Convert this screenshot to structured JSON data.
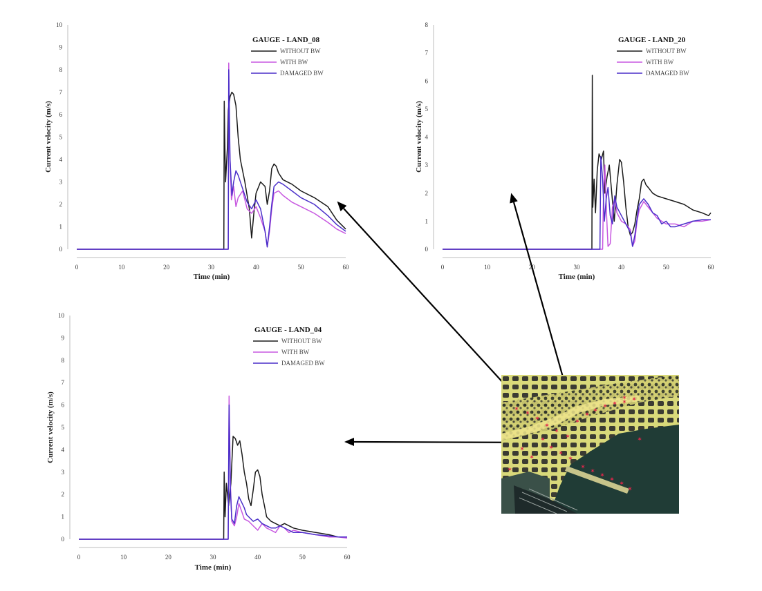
{
  "colors": {
    "without_bw": "#1a1a1a",
    "with_bw": "#c757e0",
    "damaged_bw": "#4a2fc9",
    "arrow": "#000000",
    "map_sea": "#203c36",
    "map_land": "#d9d97a",
    "map_gauge": "#e0264a"
  },
  "map_inset": {
    "semantic": "harbor-satellite-map",
    "marker_icon": "red-star-gauge-icon"
  },
  "chart_data": [
    {
      "id": "land08",
      "type": "line",
      "title": "GAUGE - LAND_08",
      "xlabel": "Time (min)",
      "ylabel": "Current velocity (m/s)",
      "xlim": [
        0,
        60
      ],
      "ylim": [
        0,
        10
      ],
      "xticks": [
        0,
        10,
        20,
        30,
        40,
        50,
        60
      ],
      "yticks": [
        0,
        1,
        2,
        3,
        4,
        5,
        6,
        7,
        8,
        9,
        10
      ],
      "legend": "top-right",
      "series": [
        {
          "name": "WITHOUT BW",
          "x": [
            0,
            32.8,
            32.9,
            33.0,
            33.2,
            33.6,
            33.8,
            34.2,
            34.6,
            35.0,
            35.5,
            36.0,
            36.5,
            37.5,
            38.5,
            39.0,
            39.5,
            40.0,
            41.0,
            42.0,
            42.5,
            43.0,
            43.5,
            44.0,
            44.5,
            45.0,
            46.0,
            48.0,
            50.0,
            53.0,
            56.0,
            58.0,
            60.0
          ],
          "y": [
            0,
            0,
            6.6,
            5.0,
            3.0,
            4.5,
            6.2,
            6.8,
            7.0,
            6.9,
            6.4,
            5.0,
            4.0,
            3.0,
            1.8,
            0.5,
            1.6,
            2.5,
            3.0,
            2.8,
            2.0,
            2.6,
            3.6,
            3.8,
            3.7,
            3.4,
            3.1,
            2.9,
            2.6,
            2.3,
            1.9,
            1.3,
            0.9
          ]
        },
        {
          "name": "WITH BW",
          "x": [
            0,
            33.8,
            33.9,
            34.1,
            34.5,
            35.0,
            35.5,
            36.0,
            37.0,
            38.0,
            39.0,
            40.0,
            41.0,
            42.0,
            42.5,
            43.0,
            43.5,
            44.0,
            45.0,
            46.0,
            48.0,
            50.0,
            53.0,
            56.0,
            58.0,
            60.0
          ],
          "y": [
            0,
            0,
            8.3,
            4.5,
            2.2,
            2.8,
            1.9,
            2.3,
            2.6,
            1.8,
            1.6,
            1.9,
            1.4,
            0.8,
            0.1,
            0.8,
            1.8,
            2.5,
            2.6,
            2.4,
            2.1,
            1.9,
            1.6,
            1.2,
            0.9,
            0.7
          ]
        },
        {
          "name": "DAMAGED BW",
          "x": [
            0,
            33.8,
            33.9,
            34.2,
            34.6,
            35.0,
            35.5,
            36.0,
            37.0,
            38.0,
            39.0,
            40.0,
            41.0,
            42.0,
            42.5,
            43.0,
            43.5,
            44.0,
            45.0,
            46.0,
            48.0,
            50.0,
            53.0,
            56.0,
            58.0,
            60.0
          ],
          "y": [
            0,
            0,
            8.0,
            4.0,
            2.4,
            3.0,
            3.5,
            3.3,
            2.7,
            2.1,
            1.8,
            2.2,
            1.8,
            0.8,
            0.1,
            1.0,
            2.0,
            2.8,
            3.0,
            2.9,
            2.6,
            2.3,
            2.0,
            1.5,
            1.1,
            0.8
          ]
        }
      ]
    },
    {
      "id": "land20",
      "type": "line",
      "title": "GAUGE - LAND_20",
      "xlabel": "Time (min)",
      "ylabel": "Current velocity (m/s)",
      "xlim": [
        0,
        60
      ],
      "ylim": [
        0,
        8
      ],
      "xticks": [
        0,
        10,
        20,
        30,
        40,
        50,
        60
      ],
      "yticks": [
        0,
        1,
        2,
        3,
        4,
        5,
        6,
        7,
        8
      ],
      "legend": "top-right",
      "series": [
        {
          "name": "WITHOUT BW",
          "x": [
            0,
            33.4,
            33.5,
            33.6,
            33.9,
            34.2,
            34.6,
            35.0,
            35.5,
            36.0,
            36.3,
            36.8,
            37.3,
            37.8,
            38.4,
            39.0,
            39.6,
            40.0,
            40.5,
            41.0,
            41.5,
            42.0,
            42.5,
            43.0,
            43.5,
            44.0,
            44.5,
            45.0,
            45.5,
            46.0,
            47.0,
            48.0,
            50.0,
            52.0,
            54.0,
            56.0,
            58.0,
            59.5,
            60.0
          ],
          "y": [
            0,
            0,
            6.2,
            1.5,
            2.5,
            1.3,
            2.8,
            3.4,
            3.2,
            3.5,
            2.0,
            2.6,
            3.0,
            2.1,
            1.0,
            2.3,
            3.2,
            3.1,
            2.4,
            1.5,
            0.8,
            0.5,
            0.6,
            0.9,
            1.4,
            1.8,
            2.4,
            2.5,
            2.3,
            2.2,
            2.0,
            1.9,
            1.8,
            1.7,
            1.6,
            1.4,
            1.3,
            1.2,
            1.3
          ]
        },
        {
          "name": "WITH BW",
          "x": [
            0,
            35.8,
            36.0,
            36.3,
            36.7,
            37.0,
            37.5,
            38.0,
            38.5,
            39.0,
            40.0,
            41.0,
            42.0,
            42.5,
            43.0,
            43.5,
            44.0,
            45.0,
            46.0,
            47.0,
            48.0,
            49.0,
            50.0,
            52.0,
            54.0,
            56.0,
            58.0,
            60.0
          ],
          "y": [
            0,
            0,
            2.0,
            3.0,
            1.2,
            0.1,
            0.2,
            1.5,
            1.8,
            1.3,
            1.0,
            0.9,
            0.7,
            0.1,
            0.3,
            1.0,
            1.4,
            1.7,
            1.5,
            1.3,
            1.1,
            1.0,
            0.9,
            0.9,
            0.8,
            1.0,
            1.0,
            1.05
          ]
        },
        {
          "name": "DAMAGED BW",
          "x": [
            0,
            35.2,
            35.4,
            35.8,
            36.2,
            36.6,
            37.0,
            37.5,
            38.0,
            38.5,
            39.0,
            40.0,
            41.0,
            42.0,
            42.5,
            43.0,
            43.5,
            44.0,
            45.0,
            46.0,
            47.0,
            48.0,
            49.0,
            50.0,
            51.0,
            52.0,
            54.0,
            56.0,
            58.0,
            60.0
          ],
          "y": [
            0,
            0,
            3.3,
            2.5,
            1.0,
            1.8,
            2.2,
            1.2,
            0.9,
            1.9,
            1.5,
            1.2,
            0.9,
            0.6,
            0.1,
            0.5,
            1.1,
            1.6,
            1.8,
            1.6,
            1.3,
            1.2,
            0.9,
            1.0,
            0.8,
            0.8,
            0.9,
            1.0,
            1.05,
            1.05
          ]
        }
      ]
    },
    {
      "id": "land04",
      "type": "line",
      "title": "GAUGE - LAND_04",
      "xlabel": "Time (min)",
      "ylabel": "Current velocity (m/s)",
      "xlim": [
        0,
        60
      ],
      "ylim": [
        0,
        10
      ],
      "xticks": [
        0,
        10,
        20,
        30,
        40,
        50,
        60
      ],
      "yticks": [
        0,
        1,
        2,
        3,
        4,
        5,
        6,
        7,
        8,
        9,
        10
      ],
      "legend": "top-right",
      "series": [
        {
          "name": "WITHOUT BW",
          "x": [
            0,
            32.4,
            32.5,
            32.7,
            33.0,
            33.5,
            34.0,
            34.5,
            35.0,
            35.5,
            36.0,
            36.5,
            37.0,
            37.5,
            38.0,
            38.5,
            39.0,
            39.5,
            40.0,
            40.5,
            41.0,
            41.5,
            42.0,
            43.0,
            44.0,
            45.0,
            46.0,
            48.0,
            50.0,
            53.0,
            56.0,
            58.0,
            60.0
          ],
          "y": [
            0,
            0,
            3.0,
            1.0,
            2.5,
            1.5,
            2.5,
            4.6,
            4.5,
            4.2,
            4.4,
            3.8,
            3.0,
            2.5,
            1.8,
            1.5,
            2.2,
            3.0,
            3.1,
            2.8,
            2.0,
            1.5,
            1.0,
            0.8,
            0.7,
            0.6,
            0.7,
            0.5,
            0.4,
            0.3,
            0.2,
            0.1,
            0.1
          ]
        },
        {
          "name": "WITH BW",
          "x": [
            0,
            33.4,
            33.6,
            33.9,
            34.2,
            34.8,
            35.3,
            35.8,
            36.5,
            37.0,
            38.0,
            39.0,
            40.0,
            41.0,
            42.0,
            43.0,
            44.0,
            45.0,
            46.0,
            47.0,
            48.0,
            50.0,
            53.0,
            56.0,
            58.0,
            60.0
          ],
          "y": [
            0,
            0,
            6.4,
            2.5,
            0.8,
            0.6,
            1.0,
            1.6,
            1.2,
            0.9,
            0.8,
            0.6,
            0.4,
            0.7,
            0.5,
            0.4,
            0.3,
            0.6,
            0.5,
            0.3,
            0.4,
            0.3,
            0.2,
            0.1,
            0.1,
            0.05
          ]
        },
        {
          "name": "DAMAGED BW",
          "x": [
            0,
            33.4,
            33.6,
            33.9,
            34.2,
            34.8,
            35.3,
            35.8,
            36.3,
            37.0,
            37.5,
            38.0,
            39.0,
            40.0,
            41.0,
            42.0,
            43.0,
            44.0,
            45.0,
            46.0,
            47.0,
            48.0,
            50.0,
            53.0,
            56.0,
            58.0,
            60.0
          ],
          "y": [
            0,
            0,
            6.0,
            2.2,
            0.9,
            0.7,
            1.5,
            1.9,
            1.7,
            1.4,
            1.1,
            1.0,
            0.8,
            0.9,
            0.7,
            0.6,
            0.5,
            0.5,
            0.6,
            0.5,
            0.4,
            0.3,
            0.3,
            0.2,
            0.15,
            0.1,
            0.1
          ]
        }
      ]
    }
  ]
}
